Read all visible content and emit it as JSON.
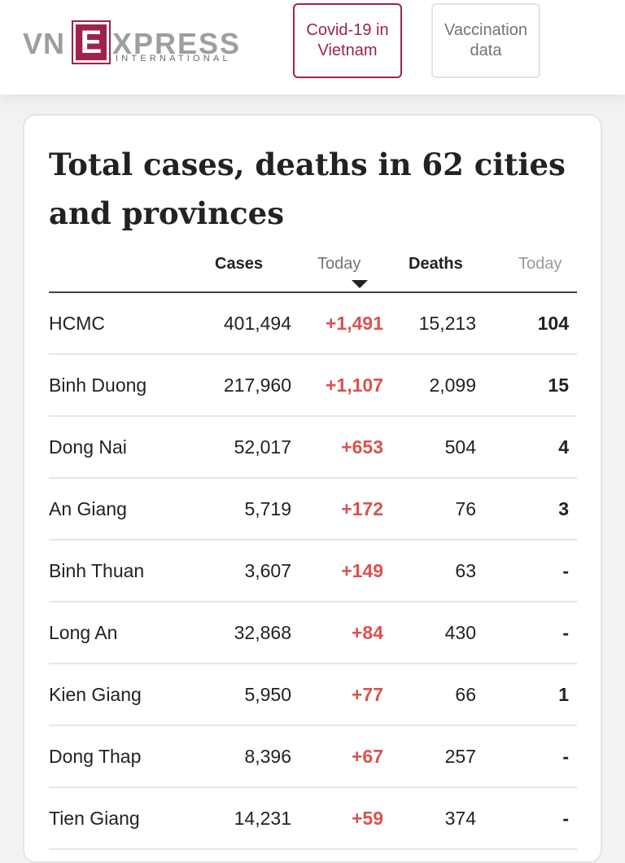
{
  "header": {
    "logo": {
      "vn": "VN",
      "e": "E",
      "xpress": "XPRESS",
      "sub": "INTERNATIONAL"
    },
    "nav": [
      {
        "label": "Covid-19 in\nVietnam"
      },
      {
        "label": "Vaccination\ndata"
      }
    ]
  },
  "card": {
    "title": "Total cases, deaths in 62 cities and provinces",
    "columns": {
      "cases": "Cases",
      "today": "Today",
      "deaths": "Deaths",
      "deaths_today": "Today"
    },
    "rows": [
      {
        "name": "HCMC",
        "cases": "401,494",
        "today": "+1,491",
        "deaths": "15,213",
        "deaths_today": "104"
      },
      {
        "name": "Binh Duong",
        "cases": "217,960",
        "today": "+1,107",
        "deaths": "2,099",
        "deaths_today": "15"
      },
      {
        "name": "Dong Nai",
        "cases": "52,017",
        "today": "+653",
        "deaths": "504",
        "deaths_today": "4"
      },
      {
        "name": "An Giang",
        "cases": "5,719",
        "today": "+172",
        "deaths": "76",
        "deaths_today": "3"
      },
      {
        "name": "Binh Thuan",
        "cases": "3,607",
        "today": "+149",
        "deaths": "63",
        "deaths_today": "-"
      },
      {
        "name": "Long An",
        "cases": "32,868",
        "today": "+84",
        "deaths": "430",
        "deaths_today": "-"
      },
      {
        "name": "Kien Giang",
        "cases": "5,950",
        "today": "+77",
        "deaths": "66",
        "deaths_today": "1"
      },
      {
        "name": "Dong Thap",
        "cases": "8,396",
        "today": "+67",
        "deaths": "257",
        "deaths_today": "-"
      },
      {
        "name": "Tien Giang",
        "cases": "14,231",
        "today": "+59",
        "deaths": "374",
        "deaths_today": "-"
      }
    ]
  },
  "colors": {
    "brand": "#9f224e",
    "increase": "#d9534f"
  }
}
